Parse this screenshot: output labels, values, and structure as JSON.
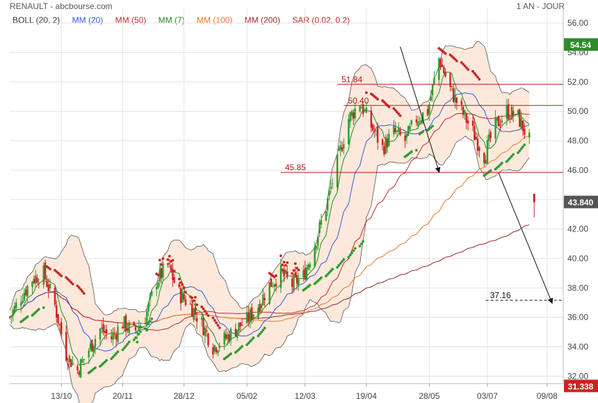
{
  "header": {
    "title": "RENAULT - abcbourse.com",
    "period": "1 AN - JOUR"
  },
  "legend": [
    {
      "label": "BOLL (20, 2)",
      "color": "#333333"
    },
    {
      "label": "MM (20)",
      "color": "#3355dd"
    },
    {
      "label": "MM (50)",
      "color": "#cc2222"
    },
    {
      "label": "MM (7)",
      "color": "#228822"
    },
    {
      "label": "MM (100)",
      "color": "#ee7722"
    },
    {
      "label": "MM (200)",
      "color": "#992222"
    },
    {
      "label": "SAR (0.02, 0.2)",
      "color": "#cc2222"
    }
  ],
  "chart_data": {
    "type": "candlestick",
    "ylim": [
      31.5,
      57
    ],
    "yticks": [
      "32.00",
      "34.00",
      "36.00",
      "38.00",
      "40.00",
      "42.00",
      "44.00",
      "46.00",
      "48.00",
      "50.00",
      "52.00",
      "54.00",
      "56.00"
    ],
    "xticks": [
      "13/10",
      "20/11",
      "28/12",
      "05/02",
      "12/03",
      "19/04",
      "28/05",
      "03/07",
      "09/08"
    ],
    "price_tags": [
      {
        "label": "54.54",
        "value": 54.54,
        "color": "#2e8b2e"
      },
      {
        "label": "43.840",
        "value": 43.84,
        "color": "#555555"
      },
      {
        "label": "31.338",
        "value": 31.338,
        "color": "#cc2222"
      }
    ],
    "horizontal_levels": [
      {
        "label": "51.84",
        "value": 51.84
      },
      {
        "label": "50.40",
        "value": 50.4
      },
      {
        "label": "45.85",
        "value": 45.85
      }
    ],
    "target_level": {
      "label": "37.16",
      "value": 37.16
    },
    "close_path": [
      [
        "2023-09-11",
        36.0
      ],
      [
        "2023-09-18",
        37.4
      ],
      [
        "2023-09-25",
        38.6
      ],
      [
        "2023-10-02",
        39.0
      ],
      [
        "2023-10-09",
        36.8
      ],
      [
        "2023-10-16",
        33.5
      ],
      [
        "2023-10-23",
        32.4
      ],
      [
        "2023-10-30",
        33.8
      ],
      [
        "2023-11-06",
        35.2
      ],
      [
        "2023-11-13",
        34.6
      ],
      [
        "2023-11-20",
        35.6
      ],
      [
        "2023-11-27",
        35.0
      ],
      [
        "2023-12-04",
        36.0
      ],
      [
        "2023-12-11",
        38.5
      ],
      [
        "2023-12-18",
        39.5
      ],
      [
        "2023-12-25",
        37.6
      ],
      [
        "2024-01-01",
        36.8
      ],
      [
        "2024-01-08",
        35.6
      ],
      [
        "2024-01-15",
        34.0
      ],
      [
        "2024-01-22",
        34.5
      ],
      [
        "2024-01-29",
        35.2
      ],
      [
        "2024-02-05",
        35.8
      ],
      [
        "2024-02-12",
        36.8
      ],
      [
        "2024-02-19",
        38.2
      ],
      [
        "2024-02-26",
        39.0
      ],
      [
        "2024-03-04",
        38.2
      ],
      [
        "2024-03-11",
        38.8
      ],
      [
        "2024-03-18",
        41.0
      ],
      [
        "2024-03-25",
        43.5
      ],
      [
        "2024-04-01",
        46.5
      ],
      [
        "2024-04-08",
        49.5
      ],
      [
        "2024-04-15",
        50.6
      ],
      [
        "2024-04-22",
        49.0
      ],
      [
        "2024-04-29",
        47.5
      ],
      [
        "2024-05-06",
        48.6
      ],
      [
        "2024-05-13",
        48.0
      ],
      [
        "2024-05-20",
        49.5
      ],
      [
        "2024-05-27",
        50.0
      ],
      [
        "2024-06-03",
        53.6
      ],
      [
        "2024-06-10",
        51.5
      ],
      [
        "2024-06-17",
        50.0
      ],
      [
        "2024-06-24",
        48.6
      ],
      [
        "2024-07-01",
        47.0
      ],
      [
        "2024-07-08",
        49.0
      ],
      [
        "2024-07-15",
        50.0
      ],
      [
        "2024-07-22",
        49.6
      ],
      [
        "2024-07-29",
        48.0
      ]
    ],
    "gap_candle": {
      "date": "2024-08-01",
      "open": 44.4,
      "close": 43.84,
      "high": 44.4,
      "low": 42.8
    },
    "sar_segments": [
      [
        "2023-09-18",
        "2023-10-02",
        "up"
      ],
      [
        "2023-10-04",
        "2023-10-27",
        "down"
      ],
      [
        "2023-10-30",
        "2023-12-08",
        "up"
      ],
      [
        "2023-12-11",
        "2024-01-19",
        "down"
      ],
      [
        "2024-01-22",
        "2024-02-16",
        "up"
      ],
      [
        "2024-02-19",
        "2024-03-08",
        "down"
      ],
      [
        "2024-03-11",
        "2024-04-17",
        "up"
      ],
      [
        "2024-04-19",
        "2024-05-10",
        "down"
      ],
      [
        "2024-05-13",
        "2024-05-20",
        "up"
      ],
      [
        "2024-05-22",
        "2024-05-30",
        "up"
      ],
      [
        "2024-06-03",
        "2024-06-28",
        "down"
      ],
      [
        "2024-07-01",
        "2024-07-26",
        "up"
      ]
    ]
  }
}
